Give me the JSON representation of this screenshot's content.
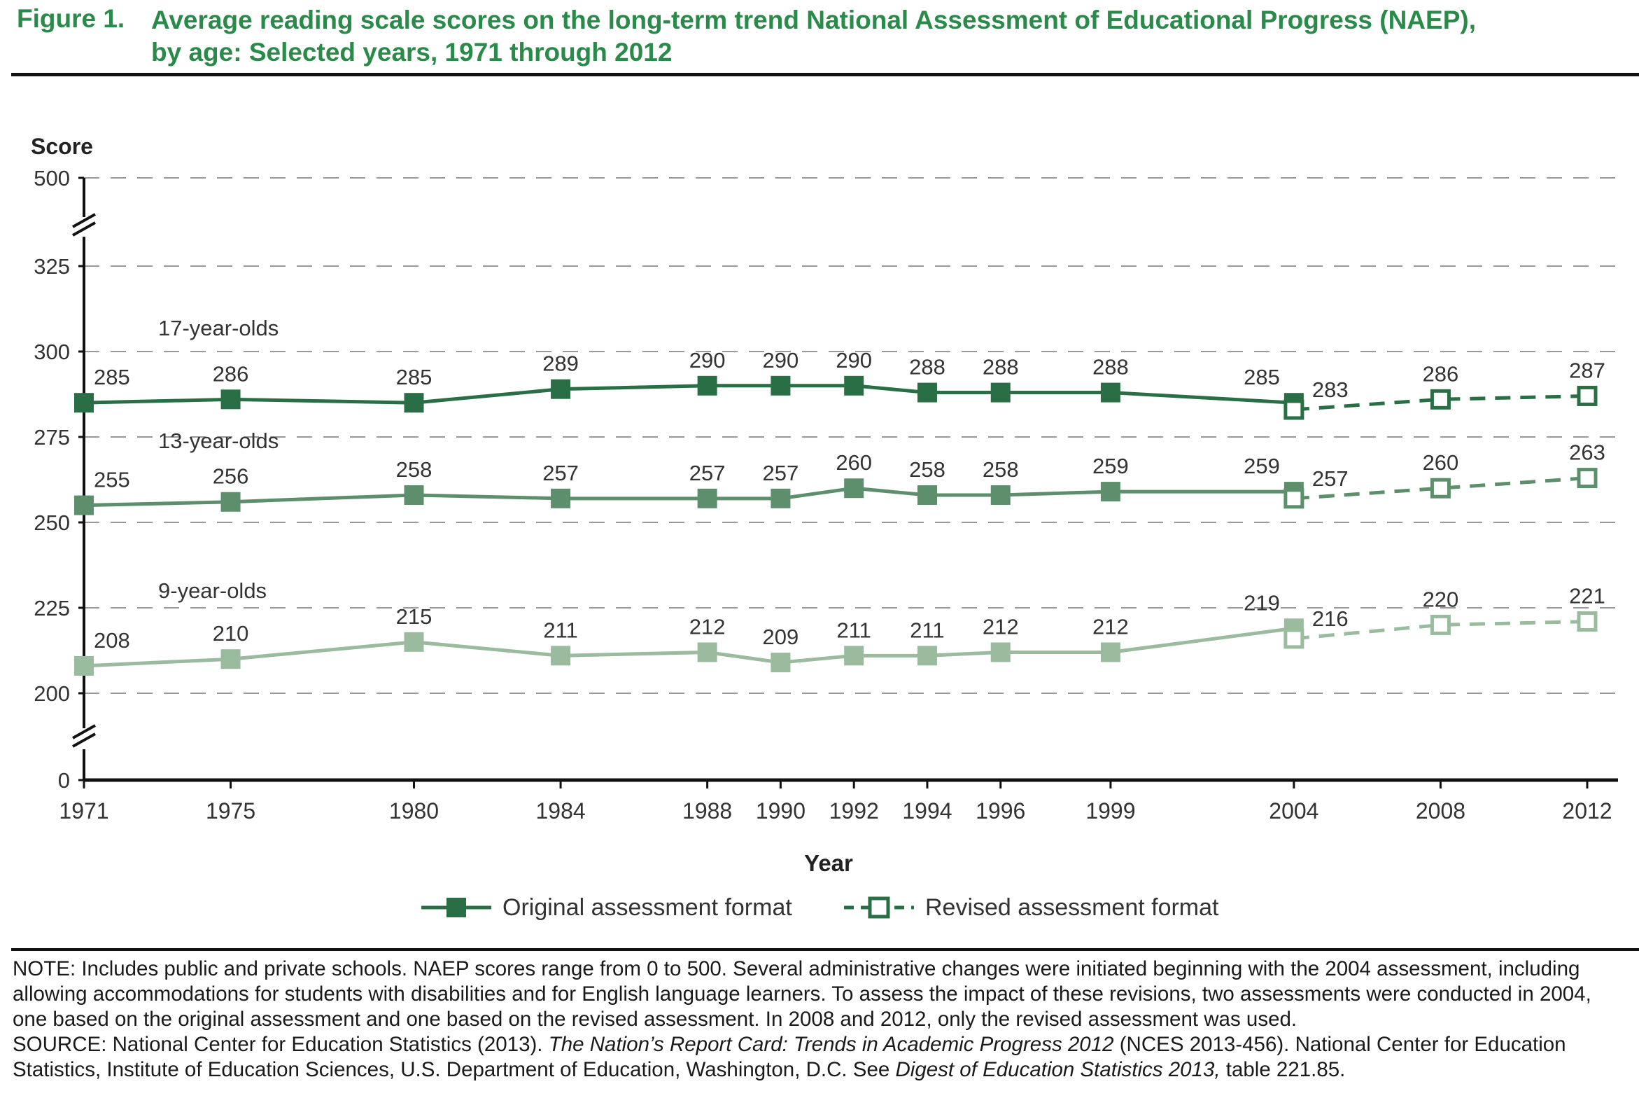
{
  "figure": {
    "label": "Figure 1.",
    "title_line1": "Average reading scale scores on the long-term trend National Assessment of Educational Progress (NAEP),",
    "title_line2": "by age: Selected years, 1971 through 2012"
  },
  "colors": {
    "age17": "#2a6e45",
    "age13": "#5e8f6c",
    "age9": "#9bbb9f",
    "title": "#2a8a4a",
    "grid": "#999999"
  },
  "chart_data": {
    "type": "line",
    "title": "",
    "xlabel": "Year",
    "ylabel": "Score",
    "y_ticks": [
      0,
      200,
      225,
      250,
      275,
      300,
      325,
      500
    ],
    "y_axis_breaks": [
      "0-200",
      "325-500"
    ],
    "x": [
      1971,
      1975,
      1980,
      1984,
      1988,
      1990,
      1992,
      1994,
      1996,
      1999,
      2004,
      2008,
      2012
    ],
    "grid": true,
    "legend_position": "bottom-center",
    "legend": [
      "Original assessment format",
      "Revised assessment format"
    ],
    "series": [
      {
        "name": "17-year-olds",
        "color_key": "age17",
        "original": [
          [
            1971,
            285
          ],
          [
            1975,
            286
          ],
          [
            1980,
            285
          ],
          [
            1984,
            289
          ],
          [
            1988,
            290
          ],
          [
            1990,
            290
          ],
          [
            1992,
            290
          ],
          [
            1994,
            288
          ],
          [
            1996,
            288
          ],
          [
            1999,
            288
          ],
          [
            2004,
            285
          ]
        ],
        "revised": [
          [
            2004,
            283
          ],
          [
            2008,
            286
          ],
          [
            2012,
            287
          ]
        ]
      },
      {
        "name": "13-year-olds",
        "color_key": "age13",
        "original": [
          [
            1971,
            255
          ],
          [
            1975,
            256
          ],
          [
            1980,
            258
          ],
          [
            1984,
            257
          ],
          [
            1988,
            257
          ],
          [
            1990,
            257
          ],
          [
            1992,
            260
          ],
          [
            1994,
            258
          ],
          [
            1996,
            258
          ],
          [
            1999,
            259
          ],
          [
            2004,
            259
          ]
        ],
        "revised": [
          [
            2004,
            257
          ],
          [
            2008,
            260
          ],
          [
            2012,
            263
          ]
        ]
      },
      {
        "name": "9-year-olds",
        "color_key": "age9",
        "original": [
          [
            1971,
            208
          ],
          [
            1975,
            210
          ],
          [
            1980,
            215
          ],
          [
            1984,
            211
          ],
          [
            1988,
            212
          ],
          [
            1990,
            209
          ],
          [
            1992,
            211
          ],
          [
            1994,
            211
          ],
          [
            1996,
            212
          ],
          [
            1999,
            212
          ],
          [
            2004,
            219
          ]
        ],
        "revised": [
          [
            2004,
            216
          ],
          [
            2008,
            220
          ],
          [
            2012,
            221
          ]
        ]
      }
    ]
  },
  "notes": {
    "note": "NOTE: Includes public and private schools. NAEP scores range from 0 to 500. Several administrative changes were initiated beginning with the 2004 assessment, including allowing accommodations for students with disabilities and for English language learners. To assess the impact of these revisions, two assessments were conducted in 2004, one based on the original assessment and one based on the revised assessment. In 2008 and 2012, only the revised assessment was used.",
    "source_prefix": "SOURCE: National Center for Education Statistics (2013). ",
    "source_italic1": "The Nation’s Report Card: Trends in Academic Progress 2012",
    "source_middle": " (NCES 2013-456). National Center for Education Statistics, Institute of Education Sciences, U.S. Department of Education, Washington, D.C. See ",
    "source_italic2": "Digest of Education Statistics 2013,",
    "source_suffix": " table 221.85."
  }
}
